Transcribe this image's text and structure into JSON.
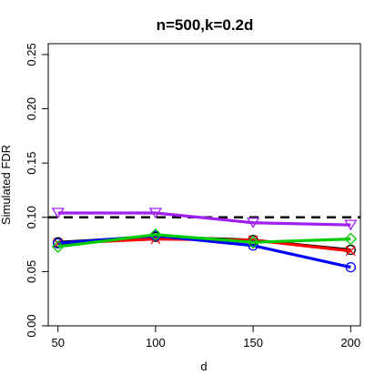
{
  "chart_data": {
    "type": "line",
    "title": "n=500,k=0.2d",
    "xlabel": "d",
    "ylabel": "Simulated FDR",
    "x": [
      50,
      100,
      150,
      200
    ],
    "x_ticks": [
      "50",
      "100",
      "150",
      "200"
    ],
    "y_ticks": [
      "0.00",
      "0.05",
      "0.10",
      "0.15",
      "0.20",
      "0.25"
    ],
    "xlim": [
      45,
      205
    ],
    "ylim": [
      0,
      0.26
    ],
    "grid": false,
    "legend": "none",
    "reference_line": {
      "y": 0.1,
      "style": "dashed",
      "color": "#000000"
    },
    "series": [
      {
        "color": "#000000",
        "marker": "circle",
        "values": [
          0.077,
          0.082,
          0.079,
          0.07
        ]
      },
      {
        "color": "#ff0000",
        "marker": "x",
        "values": [
          0.076,
          0.08,
          0.079,
          0.069
        ]
      },
      {
        "color": "#0000ff",
        "marker": "circle",
        "values": [
          0.076,
          0.083,
          0.074,
          0.054
        ]
      },
      {
        "color": "#00cc00",
        "marker": "diamond",
        "values": [
          0.073,
          0.084,
          0.077,
          0.08
        ]
      },
      {
        "color": "#a020f0",
        "marker": "triangle-down",
        "values": [
          0.104,
          0.104,
          0.095,
          0.093
        ]
      }
    ]
  }
}
